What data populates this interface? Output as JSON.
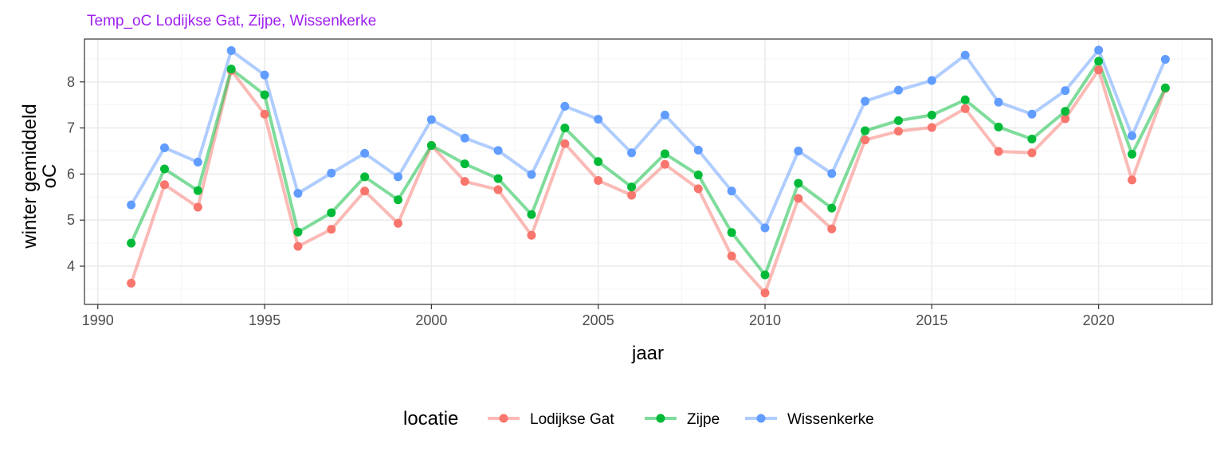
{
  "chart_data": {
    "type": "line",
    "title": "Temp_oC Lodijkse Gat, Zijpe, Wissenkerke",
    "xlabel": "jaar",
    "ylabel": [
      "winter gemiddeld",
      "oC"
    ],
    "xlim": [
      1989.6,
      2023.4
    ],
    "ylim": [
      3.17,
      8.93
    ],
    "x_ticks": [
      1990,
      1995,
      2000,
      2005,
      2010,
      2015,
      2020
    ],
    "y_ticks": [
      4,
      5,
      6,
      7,
      8
    ],
    "grid": true,
    "legend_position": "bottom",
    "legend_title": "locatie",
    "x": [
      1991,
      1992,
      1993,
      1994,
      1995,
      1996,
      1997,
      1998,
      1999,
      2000,
      2001,
      2002,
      2003,
      2004,
      2005,
      2006,
      2007,
      2008,
      2009,
      2010,
      2011,
      2012,
      2013,
      2014,
      2015,
      2016,
      2017,
      2018,
      2019,
      2020,
      2021,
      2022
    ],
    "series": [
      {
        "name": "Lodijkse Gat",
        "color": "#F8766D",
        "values": [
          3.63,
          5.77,
          5.28,
          8.25,
          7.3,
          4.43,
          4.8,
          5.63,
          4.93,
          6.62,
          5.84,
          5.66,
          4.67,
          6.66,
          5.86,
          5.54,
          6.21,
          5.68,
          4.22,
          3.42,
          5.47,
          4.81,
          6.74,
          6.93,
          7.01,
          7.42,
          6.49,
          6.46,
          7.2,
          8.26,
          5.87,
          7.86
        ]
      },
      {
        "name": "Zijpe",
        "color": "#00BA38",
        "values": [
          4.5,
          6.11,
          5.64,
          8.28,
          7.72,
          4.74,
          5.16,
          5.94,
          5.44,
          6.62,
          6.22,
          5.9,
          5.12,
          7.0,
          6.27,
          5.72,
          6.44,
          5.98,
          4.73,
          3.81,
          5.8,
          5.26,
          6.94,
          7.16,
          7.28,
          7.61,
          7.02,
          6.76,
          7.36,
          8.45,
          6.43,
          7.87
        ]
      },
      {
        "name": "Wissenkerke",
        "color": "#619CFF",
        "values": [
          5.33,
          6.57,
          6.26,
          8.68,
          8.15,
          5.58,
          6.02,
          6.45,
          5.94,
          7.18,
          6.78,
          6.51,
          5.99,
          7.47,
          7.19,
          6.46,
          7.28,
          6.52,
          5.63,
          4.83,
          6.5,
          6.01,
          7.58,
          7.82,
          8.03,
          8.58,
          7.56,
          7.3,
          7.81,
          8.69,
          6.83,
          8.49
        ]
      }
    ]
  },
  "colors": {
    "title": "#A020F0",
    "panel_border": "#333333",
    "grid_major": "#EBEBEB",
    "grid_minor": "#F5F5F5"
  }
}
